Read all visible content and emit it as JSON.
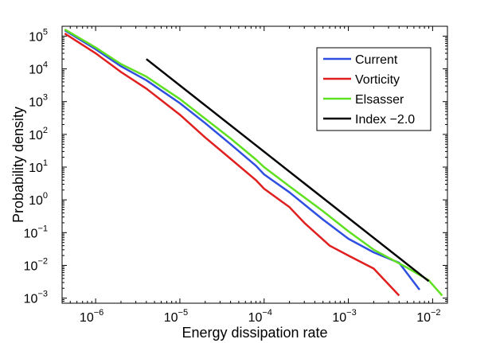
{
  "chart_data": {
    "type": "line",
    "xscale": "log",
    "yscale": "log",
    "xlim": [
      4e-07,
      0.015
    ],
    "ylim": [
      0.0007,
      200000
    ],
    "xlabel": "Energy dissipation rate",
    "ylabel": "Probability density",
    "x_ticks": [
      {
        "base": "10",
        "exp": "−6",
        "value": 1e-06
      },
      {
        "base": "10",
        "exp": "−5",
        "value": 1e-05
      },
      {
        "base": "10",
        "exp": "−4",
        "value": 0.0001
      },
      {
        "base": "10",
        "exp": "−3",
        "value": 0.001
      },
      {
        "base": "10",
        "exp": "−2",
        "value": 0.01
      }
    ],
    "y_ticks": [
      {
        "base": "10",
        "exp": "−3",
        "value": 0.001
      },
      {
        "base": "10",
        "exp": "−2",
        "value": 0.01
      },
      {
        "base": "10",
        "exp": "−1",
        "value": 0.1
      },
      {
        "base": "10",
        "exp": "0",
        "value": 1
      },
      {
        "base": "10",
        "exp": "1",
        "value": 10
      },
      {
        "base": "10",
        "exp": "2",
        "value": 100
      },
      {
        "base": "10",
        "exp": "3",
        "value": 1000
      },
      {
        "base": "10",
        "exp": "4",
        "value": 10000
      },
      {
        "base": "10",
        "exp": "5",
        "value": 100000
      }
    ],
    "legend_position": "top-right",
    "series": [
      {
        "name": "Current",
        "color": "#2f4fe0",
        "x": [
          4.3e-07,
          1e-06,
          2e-06,
          4e-06,
          1e-05,
          2e-05,
          4e-05,
          8e-05,
          0.0001,
          0.0002,
          0.0005,
          0.001,
          0.002,
          0.004,
          0.007
        ],
        "y": [
          150000,
          40000,
          12000,
          4500,
          900,
          220,
          50,
          11,
          6,
          1.7,
          0.25,
          0.065,
          0.025,
          0.012,
          0.0018
        ]
      },
      {
        "name": "Vorticity",
        "color": "#e01f1f",
        "x": [
          4.3e-07,
          1e-06,
          2e-06,
          4e-06,
          1e-05,
          2e-05,
          4e-05,
          8e-05,
          0.0001,
          0.0002,
          0.0003,
          0.0006,
          0.001,
          0.002,
          0.004
        ],
        "y": [
          120000,
          30000,
          8000,
          2500,
          400,
          80,
          18,
          4,
          2.2,
          0.6,
          0.2,
          0.04,
          0.02,
          0.008,
          0.0012
        ]
      },
      {
        "name": "Elsasser",
        "color": "#5fe020",
        "x": [
          4.3e-07,
          1e-06,
          2e-06,
          4e-06,
          1e-05,
          2e-05,
          4e-05,
          8e-05,
          0.0001,
          0.0002,
          0.0005,
          0.001,
          0.002,
          0.005,
          0.009,
          0.013
        ],
        "y": [
          160000,
          45000,
          14000,
          5800,
          1200,
          300,
          75,
          17,
          10,
          2.6,
          0.45,
          0.11,
          0.03,
          0.0085,
          0.0035,
          0.0012
        ]
      },
      {
        "name": "Index −2.0",
        "color": "#000000",
        "x": [
          4e-06,
          0.009
        ],
        "y": [
          20000,
          0.0033
        ]
      }
    ]
  }
}
